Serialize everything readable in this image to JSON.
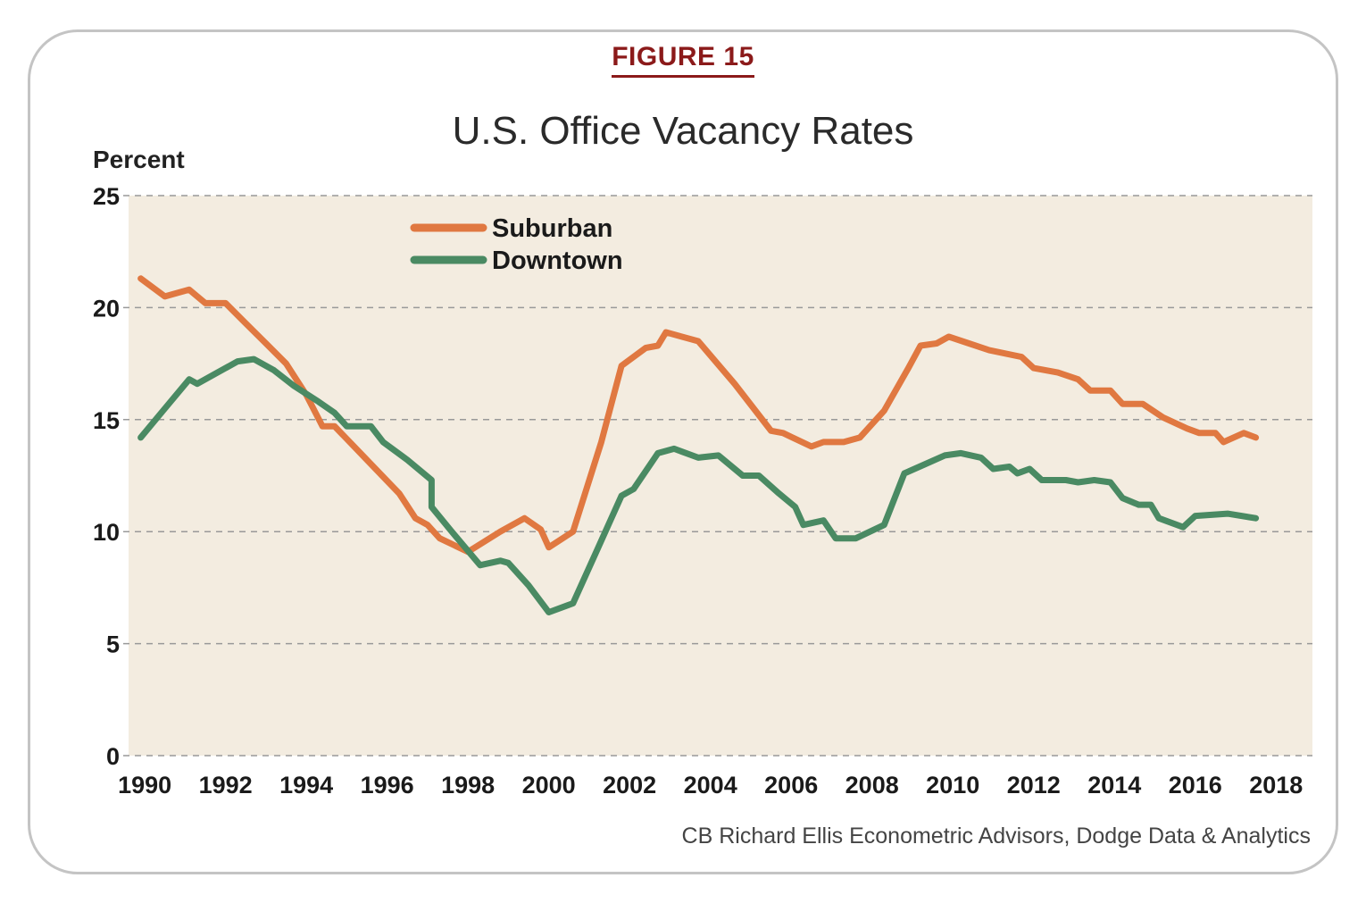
{
  "figure_label": "FIGURE 15",
  "source": "CB Richard Ellis Econometric Advisors, Dodge Data & Analytics",
  "colors": {
    "suburban": "#e07841",
    "downtown": "#4a8a63",
    "plot_bg": "#f3ece0",
    "figure_label": "#8b1a1a",
    "grid": "#999999"
  },
  "chart_data": {
    "type": "line",
    "title": "U.S. Office Vacancy Rates",
    "ylabel": "Percent",
    "xlabel": "",
    "xlim": [
      1989.6,
      2018.9
    ],
    "ylim": [
      0,
      25
    ],
    "x_ticks": [
      "1990",
      "1992",
      "1994",
      "1996",
      "1998",
      "2000",
      "2002",
      "2004",
      "2006",
      "2008",
      "2010",
      "2012",
      "2014",
      "2016",
      "2018"
    ],
    "y_ticks": [
      "0",
      "5",
      "10",
      "15",
      "20",
      "25"
    ],
    "grid": "horizontal dashed",
    "legend_position": "top-left",
    "series": [
      {
        "name": "Suburban",
        "color": "#e07841",
        "points": [
          [
            1989.9,
            21.3
          ],
          [
            1990.5,
            20.5
          ],
          [
            1991.1,
            20.8
          ],
          [
            1991.5,
            20.2
          ],
          [
            1992.0,
            20.2
          ],
          [
            1992.5,
            19.3
          ],
          [
            1993.0,
            18.4
          ],
          [
            1993.5,
            17.5
          ],
          [
            1994.0,
            16.1
          ],
          [
            1994.4,
            14.7
          ],
          [
            1994.7,
            14.7
          ],
          [
            1995.5,
            13.2
          ],
          [
            1996.3,
            11.7
          ],
          [
            1996.7,
            10.6
          ],
          [
            1997.0,
            10.3
          ],
          [
            1997.3,
            9.7
          ],
          [
            1998.0,
            9.1
          ],
          [
            1998.8,
            10.0
          ],
          [
            1999.4,
            10.6
          ],
          [
            1999.8,
            10.1
          ],
          [
            2000.0,
            9.3
          ],
          [
            2000.6,
            10.0
          ],
          [
            2001.3,
            14.0
          ],
          [
            2001.8,
            17.4
          ],
          [
            2002.4,
            18.2
          ],
          [
            2002.7,
            18.3
          ],
          [
            2002.9,
            18.9
          ],
          [
            2003.7,
            18.5
          ],
          [
            2004.6,
            16.6
          ],
          [
            2005.5,
            14.5
          ],
          [
            2005.8,
            14.4
          ],
          [
            2006.5,
            13.8
          ],
          [
            2006.8,
            14.0
          ],
          [
            2007.3,
            14.0
          ],
          [
            2007.7,
            14.2
          ],
          [
            2008.3,
            15.4
          ],
          [
            2008.9,
            17.3
          ],
          [
            2009.2,
            18.3
          ],
          [
            2009.6,
            18.4
          ],
          [
            2009.9,
            18.7
          ],
          [
            2010.4,
            18.4
          ],
          [
            2010.9,
            18.1
          ],
          [
            2011.7,
            17.8
          ],
          [
            2012.0,
            17.3
          ],
          [
            2012.6,
            17.1
          ],
          [
            2013.1,
            16.8
          ],
          [
            2013.4,
            16.3
          ],
          [
            2013.9,
            16.3
          ],
          [
            2014.2,
            15.7
          ],
          [
            2014.7,
            15.7
          ],
          [
            2015.2,
            15.1
          ],
          [
            2015.8,
            14.6
          ],
          [
            2016.1,
            14.4
          ],
          [
            2016.5,
            14.4
          ],
          [
            2016.7,
            14.0
          ],
          [
            2017.2,
            14.4
          ],
          [
            2017.5,
            14.2
          ]
        ]
      },
      {
        "name": "Downtown",
        "color": "#4a8a63",
        "points": [
          [
            1989.9,
            14.2
          ],
          [
            1990.5,
            15.5
          ],
          [
            1991.1,
            16.8
          ],
          [
            1991.3,
            16.6
          ],
          [
            1991.8,
            17.1
          ],
          [
            1992.3,
            17.6
          ],
          [
            1992.7,
            17.7
          ],
          [
            1993.2,
            17.2
          ],
          [
            1993.7,
            16.5
          ],
          [
            1994.3,
            15.8
          ],
          [
            1994.7,
            15.3
          ],
          [
            1995.0,
            14.7
          ],
          [
            1995.6,
            14.7
          ],
          [
            1995.9,
            14.0
          ],
          [
            1996.5,
            13.2
          ],
          [
            1997.1,
            12.3
          ],
          [
            1997.1,
            11.1
          ],
          [
            1997.6,
            10.0
          ],
          [
            1998.3,
            8.5
          ],
          [
            1998.8,
            8.7
          ],
          [
            1999.0,
            8.6
          ],
          [
            1999.5,
            7.6
          ],
          [
            2000.0,
            6.4
          ],
          [
            2000.6,
            6.8
          ],
          [
            2001.2,
            9.2
          ],
          [
            2001.8,
            11.6
          ],
          [
            2002.1,
            11.9
          ],
          [
            2002.7,
            13.5
          ],
          [
            2003.1,
            13.7
          ],
          [
            2003.7,
            13.3
          ],
          [
            2004.2,
            13.4
          ],
          [
            2004.8,
            12.5
          ],
          [
            2005.2,
            12.5
          ],
          [
            2005.7,
            11.7
          ],
          [
            2006.1,
            11.1
          ],
          [
            2006.3,
            10.3
          ],
          [
            2006.8,
            10.5
          ],
          [
            2007.1,
            9.7
          ],
          [
            2007.6,
            9.7
          ],
          [
            2008.3,
            10.3
          ],
          [
            2008.8,
            12.6
          ],
          [
            2009.3,
            13.0
          ],
          [
            2009.8,
            13.4
          ],
          [
            2010.2,
            13.5
          ],
          [
            2010.7,
            13.3
          ],
          [
            2011.0,
            12.8
          ],
          [
            2011.4,
            12.9
          ],
          [
            2011.6,
            12.6
          ],
          [
            2011.9,
            12.8
          ],
          [
            2012.2,
            12.3
          ],
          [
            2012.8,
            12.3
          ],
          [
            2013.1,
            12.2
          ],
          [
            2013.5,
            12.3
          ],
          [
            2013.9,
            12.2
          ],
          [
            2014.2,
            11.5
          ],
          [
            2014.6,
            11.2
          ],
          [
            2014.9,
            11.2
          ],
          [
            2015.1,
            10.6
          ],
          [
            2015.7,
            10.2
          ],
          [
            2016.0,
            10.7
          ],
          [
            2016.8,
            10.8
          ],
          [
            2017.5,
            10.6
          ]
        ]
      }
    ]
  }
}
